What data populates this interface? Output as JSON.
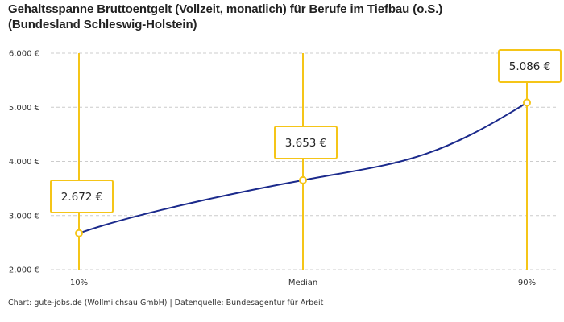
{
  "title_line1": "Gehaltsspanne Bruttoentgelt (Vollzeit, monatlich) für Berufe im Tiefbau (o.S.)",
  "title_line2": "(Bundesland Schleswig-Holstein)",
  "credit": "Chart: gute-jobs.de (Wollmilchsau GmbH) | Datenquelle: Bundesagentur für Arbeit",
  "chart_data": {
    "type": "line",
    "categories": [
      "10%",
      "Median",
      "90%"
    ],
    "values": [
      2672,
      3653,
      5086
    ],
    "data_labels": [
      "2.672 €",
      "3.653 €",
      "5.086 €"
    ],
    "ylim": [
      2000,
      6000
    ],
    "yticks": [
      2000,
      3000,
      4000,
      5000,
      6000
    ],
    "ytick_labels": [
      "2.000 €",
      "3.000 €",
      "4.000 €",
      "5.000 €",
      "6.000 €"
    ],
    "grid": true,
    "colors": {
      "line": "#1b2a8c",
      "marker": "#f5c518",
      "grid": "#cccccc"
    }
  }
}
